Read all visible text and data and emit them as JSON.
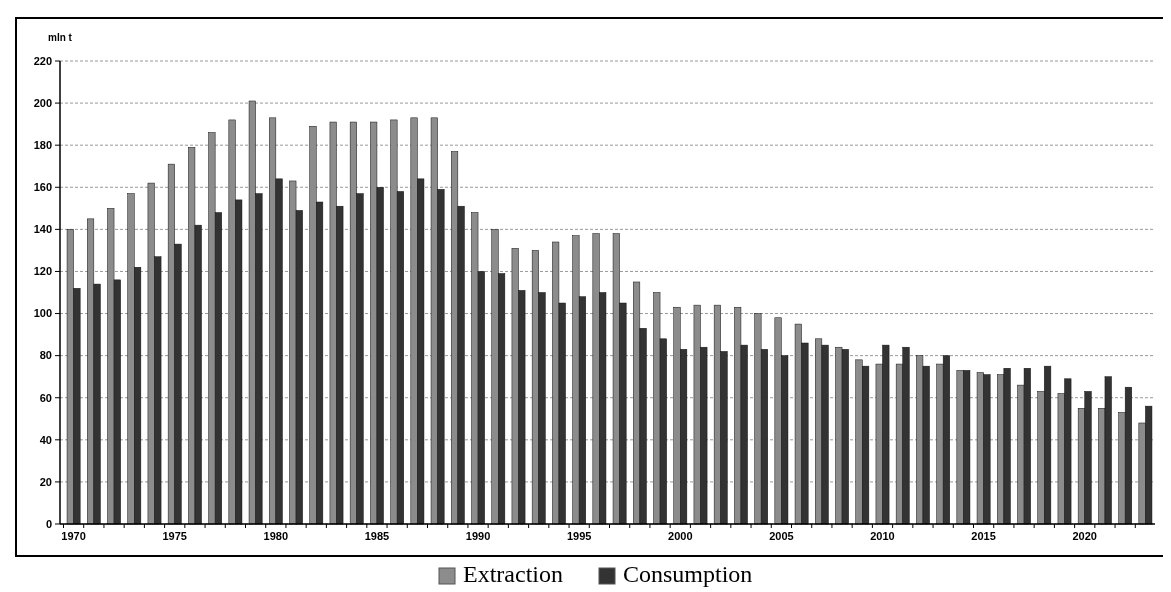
{
  "chart_data": {
    "type": "bar",
    "ylabel": "mln t",
    "categories": [
      "1970",
      null,
      null,
      null,
      null,
      "1975",
      null,
      null,
      null,
      null,
      "1980",
      null,
      null,
      null,
      null,
      "1985",
      null,
      null,
      null,
      null,
      "1990",
      null,
      null,
      null,
      null,
      "1995",
      null,
      null,
      null,
      null,
      "2000",
      null,
      null,
      null,
      null,
      "2005",
      null,
      null,
      null,
      null,
      "2010",
      null,
      null,
      null,
      null,
      "2015",
      null,
      null,
      null,
      null,
      "2020",
      null,
      null,
      null
    ],
    "series": [
      {
        "name": "Extraction",
        "color": "#8c8c8c",
        "values": [
          140,
          145,
          150,
          157,
          162,
          171,
          179,
          186,
          192,
          201,
          193,
          163,
          189,
          191,
          191,
          191,
          192,
          193,
          193,
          177,
          148,
          140,
          131,
          130,
          134,
          137,
          138,
          138,
          115,
          110,
          103,
          104,
          104,
          103,
          100,
          98,
          95,
          88,
          84,
          78,
          76,
          76,
          80,
          76,
          73,
          72,
          71,
          66,
          63,
          62,
          55,
          55,
          53,
          48
        ]
      },
      {
        "name": "Consumption",
        "color": "#333333",
        "values": [
          112,
          114,
          116,
          122,
          127,
          133,
          142,
          148,
          154,
          157,
          164,
          149,
          153,
          151,
          157,
          160,
          158,
          164,
          159,
          151,
          120,
          119,
          111,
          110,
          105,
          108,
          110,
          105,
          93,
          88,
          83,
          84,
          82,
          85,
          83,
          80,
          86,
          85,
          83,
          75,
          85,
          84,
          75,
          80,
          73,
          71,
          74,
          74,
          75,
          69,
          63,
          70,
          65,
          56
        ]
      }
    ],
    "ylim": [
      0,
      220
    ],
    "yticks": [
      0,
      20,
      40,
      60,
      80,
      100,
      120,
      140,
      160,
      180,
      200,
      220
    ],
    "grid": "y",
    "legend": "bottom"
  }
}
